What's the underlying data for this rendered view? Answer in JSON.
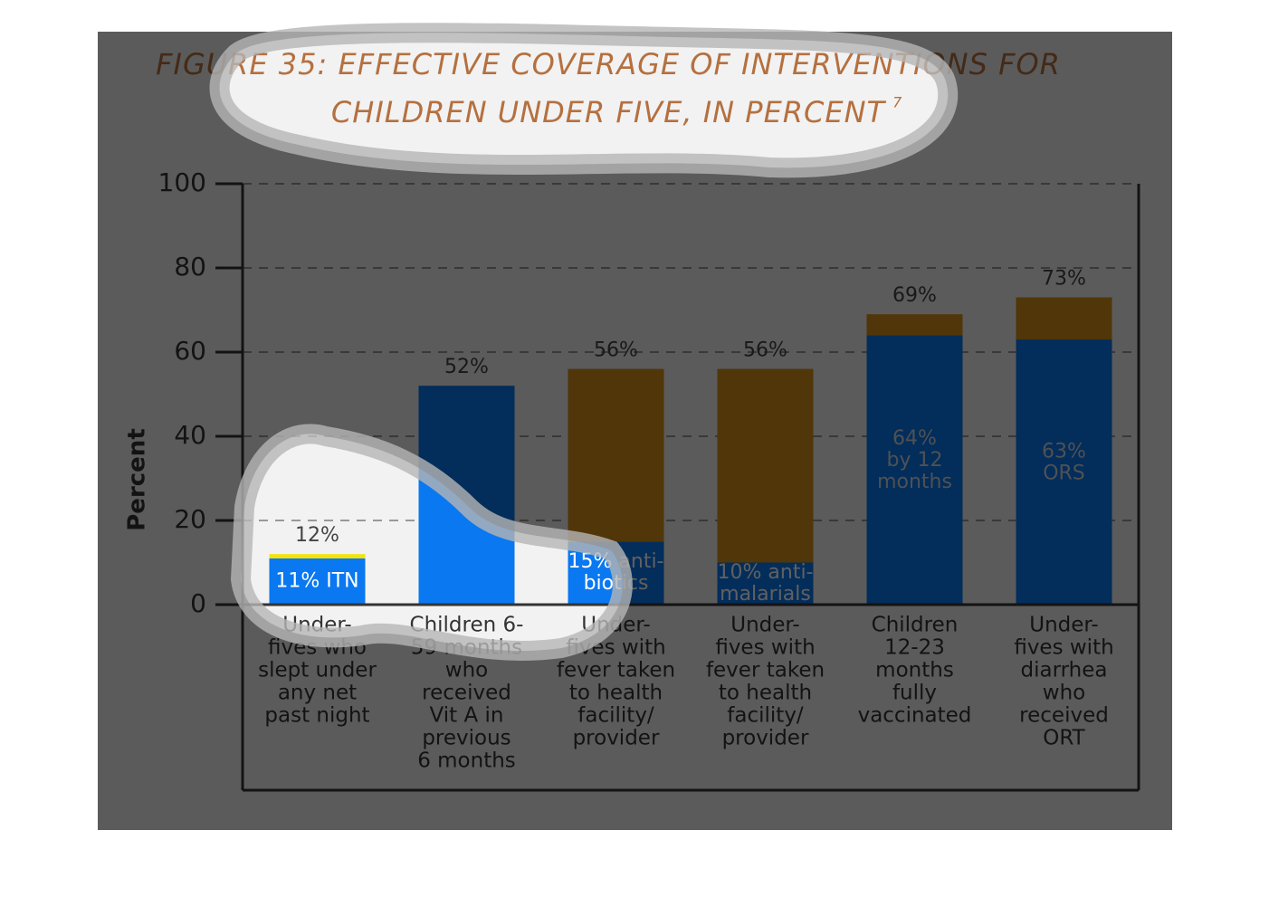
{
  "chart_data": {
    "type": "stacked_bar",
    "title": [
      "FIGURE 35: EFFECTIVE COVERAGE OF INTERVENTIONS FOR",
      "CHILDREN UNDER FIVE, IN PERCENT"
    ],
    "title_note": "7",
    "y_label": "Percent",
    "categories": [
      [
        "Under-",
        "fives who",
        "slept under",
        "any net",
        "past night"
      ],
      [
        "Children 6-",
        "59 months",
        "who",
        "received",
        "Vit A in",
        "previous",
        "6 months"
      ],
      [
        "Under-",
        "fives with",
        "fever taken",
        "to health",
        "facility/",
        "provider"
      ],
      [
        "Under-",
        "fives with",
        "fever taken",
        "to health",
        "facility/",
        "provider"
      ],
      [
        "Children",
        "12-23",
        "months",
        "fully",
        "vaccinated"
      ],
      [
        "Under-",
        "fives with",
        "diarrhea",
        "who",
        "received",
        "ORT"
      ]
    ],
    "series": [
      {
        "color": "#0a78f0",
        "values": [
          11,
          52,
          15,
          10,
          64,
          63
        ],
        "value_labels": [
          [
            "11% ITN"
          ],
          null,
          [
            "15% anti-",
            "biotics"
          ],
          [
            "10% anti-",
            "malarials"
          ],
          [
            "64%",
            "by 12",
            "months"
          ],
          [
            "63%",
            "ORS"
          ]
        ]
      },
      {
        "colors": [
          "#f5e400",
          "#d49018",
          "#d49018",
          "#d49018",
          "#d49018",
          "#d49018"
        ],
        "values": [
          1,
          0,
          41,
          46,
          5,
          10
        ]
      }
    ],
    "totals": {
      "values": [
        12,
        52,
        56,
        56,
        69,
        73
      ],
      "value_labels": [
        "12%",
        "52%",
        "56%",
        "56%",
        "69%",
        "73%"
      ]
    },
    "ylim": [
      0,
      100
    ],
    "yticks": [
      0,
      20,
      40,
      60,
      80,
      100
    ],
    "grid": true
  }
}
